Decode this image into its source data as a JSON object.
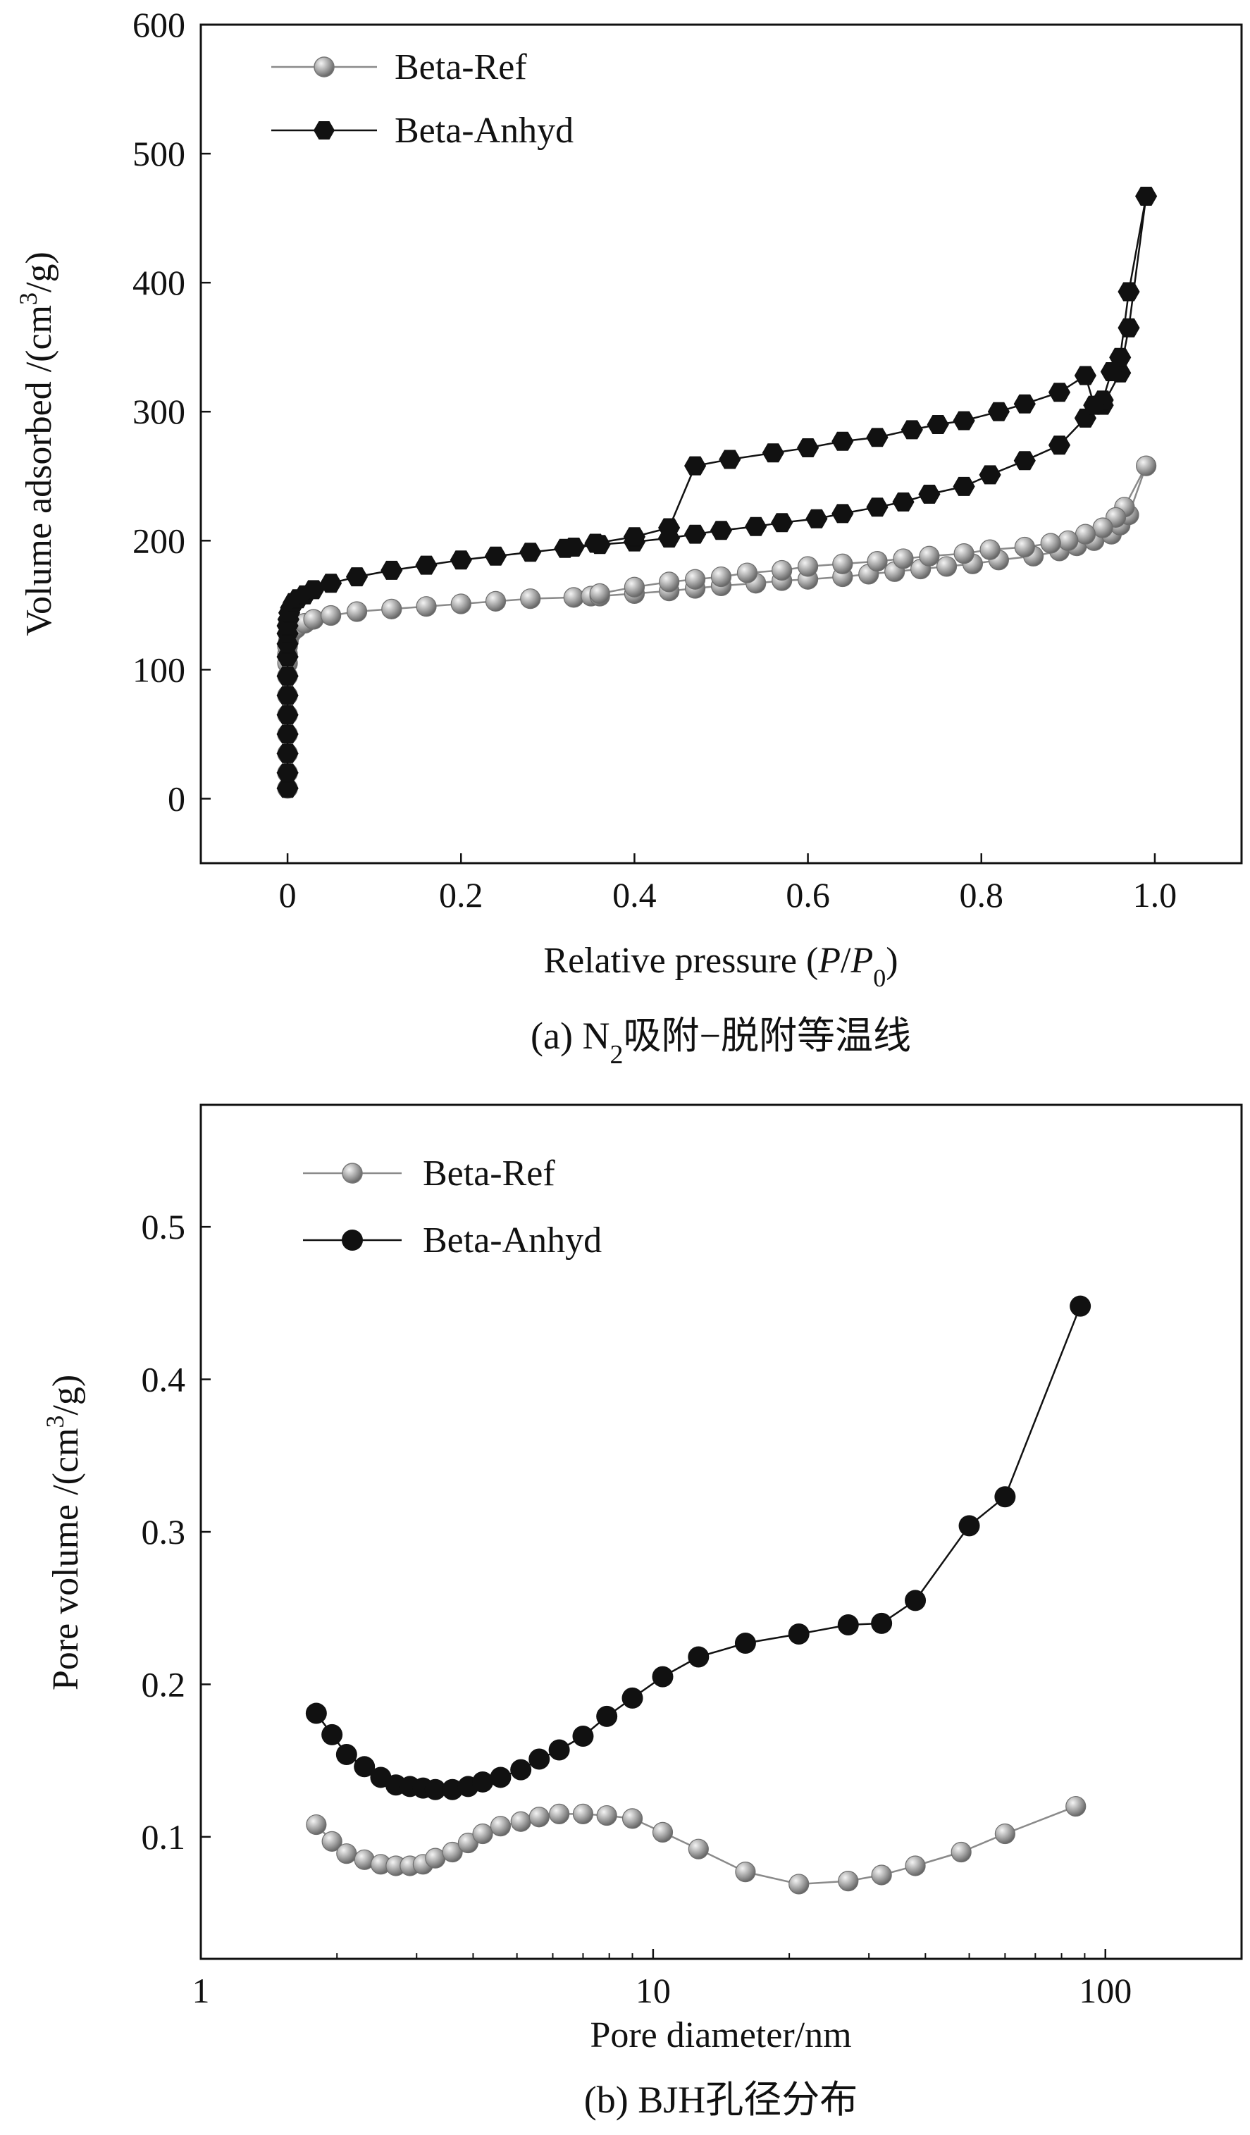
{
  "chart_data": [
    {
      "type": "line",
      "panel": "a",
      "caption": {
        "prefix": "(a) N",
        "sub": "2",
        "suffix": "吸附−脱附等温线"
      },
      "xlabel": {
        "text": "Relative pressure (",
        "italic1": "P",
        "slash": "/",
        "italic2": "P",
        "sub": "0",
        "close": ")"
      },
      "ylabel": {
        "prefix": "Volume adsorbed /(cm",
        "sup": "3",
        "suffix": "/g)"
      },
      "xlim": [
        -0.1,
        1.1
      ],
      "ylim": [
        -50,
        600
      ],
      "x_ticks": [
        0,
        0.2,
        0.4,
        0.6,
        0.8,
        1.0
      ],
      "x_tick_labels": [
        "0",
        "0.2",
        "0.4",
        "0.6",
        "0.8",
        "1.0"
      ],
      "y_ticks": [
        0,
        100,
        200,
        300,
        400,
        500,
        600
      ],
      "y_tick_labels": [
        "0",
        "100",
        "200",
        "300",
        "400",
        "500",
        "600"
      ],
      "legend_position": "top-left",
      "series": [
        {
          "name": "Beta-Ref",
          "color": "#8a8a8a",
          "marker": "sphere",
          "x": [
            0.0,
            0.0,
            0.0,
            0.0,
            0.0,
            0.0,
            0.0,
            0.0,
            0.0,
            0.0,
            0.001,
            0.002,
            0.005,
            0.01,
            0.02,
            0.03,
            0.05,
            0.08,
            0.12,
            0.16,
            0.2,
            0.24,
            0.28,
            0.33,
            0.35,
            0.36,
            0.4,
            0.44,
            0.47,
            0.5,
            0.54,
            0.57,
            0.6,
            0.64,
            0.67,
            0.7,
            0.73,
            0.76,
            0.79,
            0.82,
            0.86,
            0.89,
            0.91,
            0.93,
            0.95,
            0.96,
            0.97,
            0.99,
            0.965,
            0.955,
            0.94,
            0.92,
            0.9,
            0.88,
            0.85,
            0.81,
            0.78,
            0.74,
            0.71,
            0.68,
            0.64,
            0.6,
            0.57,
            0.53,
            0.5,
            0.47,
            0.44,
            0.4,
            0.36
          ],
          "y": [
            8,
            20,
            35,
            50,
            65,
            80,
            95,
            105,
            112,
            118,
            122,
            126,
            129,
            132,
            136,
            139,
            142,
            145,
            147,
            149,
            151,
            153,
            155,
            156,
            157,
            157,
            159,
            161,
            163,
            165,
            167,
            169,
            170,
            172,
            174,
            176,
            178,
            180,
            182,
            185,
            188,
            192,
            196,
            200,
            205,
            212,
            220,
            258,
            226,
            218,
            210,
            205,
            200,
            198,
            195,
            193,
            190,
            188,
            186,
            184,
            182,
            180,
            177,
            175,
            172,
            170,
            168,
            164,
            159
          ]
        },
        {
          "name": "Beta-Anhyd",
          "color": "#111111",
          "marker": "hexagon",
          "x": [
            0.0,
            0.0,
            0.0,
            0.0,
            0.0,
            0.0,
            0.0,
            0.0,
            0.0,
            0.0,
            0.0,
            0.001,
            0.002,
            0.004,
            0.007,
            0.012,
            0.02,
            0.03,
            0.05,
            0.08,
            0.12,
            0.16,
            0.2,
            0.24,
            0.28,
            0.32,
            0.36,
            0.4,
            0.44,
            0.47,
            0.5,
            0.54,
            0.57,
            0.61,
            0.64,
            0.68,
            0.71,
            0.74,
            0.78,
            0.81,
            0.85,
            0.89,
            0.92,
            0.94,
            0.96,
            0.97,
            0.99,
            0.97,
            0.96,
            0.95,
            0.94,
            0.93,
            0.92,
            0.89,
            0.85,
            0.82,
            0.78,
            0.75,
            0.72,
            0.68,
            0.64,
            0.6,
            0.56,
            0.51,
            0.47,
            0.44,
            0.4,
            0.355,
            0.33
          ],
          "y": [
            8,
            20,
            35,
            50,
            65,
            80,
            95,
            110,
            120,
            128,
            134,
            139,
            144,
            148,
            152,
            155,
            158,
            162,
            167,
            172,
            177,
            181,
            185,
            188,
            191,
            194,
            197,
            199,
            202,
            205,
            208,
            211,
            214,
            217,
            221,
            226,
            230,
            236,
            242,
            251,
            262,
            274,
            295,
            305,
            330,
            365,
            467,
            393,
            342,
            331,
            309,
            305,
            328,
            315,
            306,
            300,
            293,
            290,
            286,
            280,
            277,
            272,
            268,
            263,
            258,
            210,
            203,
            198,
            195
          ]
        }
      ]
    },
    {
      "type": "line",
      "panel": "b",
      "caption": {
        "text": "(b) BJH孔径分布"
      },
      "xlabel": {
        "text": "Pore diameter/nm"
      },
      "ylabel": {
        "prefix": "Pore volume /(cm",
        "sup": "3",
        "suffix": "/g)"
      },
      "xscale": "log",
      "xlim": [
        1,
        200
      ],
      "ylim": [
        0.02,
        0.58
      ],
      "x_ticks": [
        1,
        10,
        100
      ],
      "x_tick_labels": [
        "1",
        "10",
        "100"
      ],
      "y_ticks": [
        0.1,
        0.2,
        0.3,
        0.4,
        0.5
      ],
      "y_tick_labels": [
        "0.1",
        "0.2",
        "0.3",
        "0.4",
        "0.5"
      ],
      "legend_position": "top-left",
      "series": [
        {
          "name": "Beta-Ref",
          "color": "#8a8a8a",
          "marker": "sphere",
          "x": [
            1.8,
            1.95,
            2.1,
            2.3,
            2.5,
            2.7,
            2.9,
            3.1,
            3.3,
            3.6,
            3.9,
            4.2,
            4.6,
            5.1,
            5.6,
            6.2,
            7.0,
            7.9,
            9.0,
            10.5,
            12.6,
            16.0,
            21.0,
            27.0,
            32.0,
            38.0,
            48.0,
            60.0,
            86.0
          ],
          "y": [
            0.108,
            0.097,
            0.089,
            0.085,
            0.082,
            0.081,
            0.081,
            0.082,
            0.086,
            0.09,
            0.096,
            0.102,
            0.107,
            0.11,
            0.113,
            0.115,
            0.115,
            0.114,
            0.112,
            0.103,
            0.092,
            0.077,
            0.069,
            0.071,
            0.075,
            0.081,
            0.09,
            0.102,
            0.12
          ]
        },
        {
          "name": "Beta-Anhyd",
          "color": "#111111",
          "marker": "circle",
          "x": [
            1.8,
            1.95,
            2.1,
            2.3,
            2.5,
            2.7,
            2.9,
            3.1,
            3.3,
            3.6,
            3.9,
            4.2,
            4.6,
            5.1,
            5.6,
            6.2,
            7.0,
            7.9,
            9.0,
            10.5,
            12.6,
            16.0,
            21.0,
            27.0,
            32.0,
            38.0,
            50.0,
            60.0,
            88.0
          ],
          "y": [
            0.181,
            0.167,
            0.154,
            0.146,
            0.139,
            0.134,
            0.133,
            0.132,
            0.131,
            0.131,
            0.133,
            0.136,
            0.139,
            0.144,
            0.151,
            0.157,
            0.166,
            0.179,
            0.191,
            0.205,
            0.218,
            0.227,
            0.233,
            0.239,
            0.24,
            0.255,
            0.304,
            0.323,
            0.448
          ]
        }
      ]
    }
  ]
}
